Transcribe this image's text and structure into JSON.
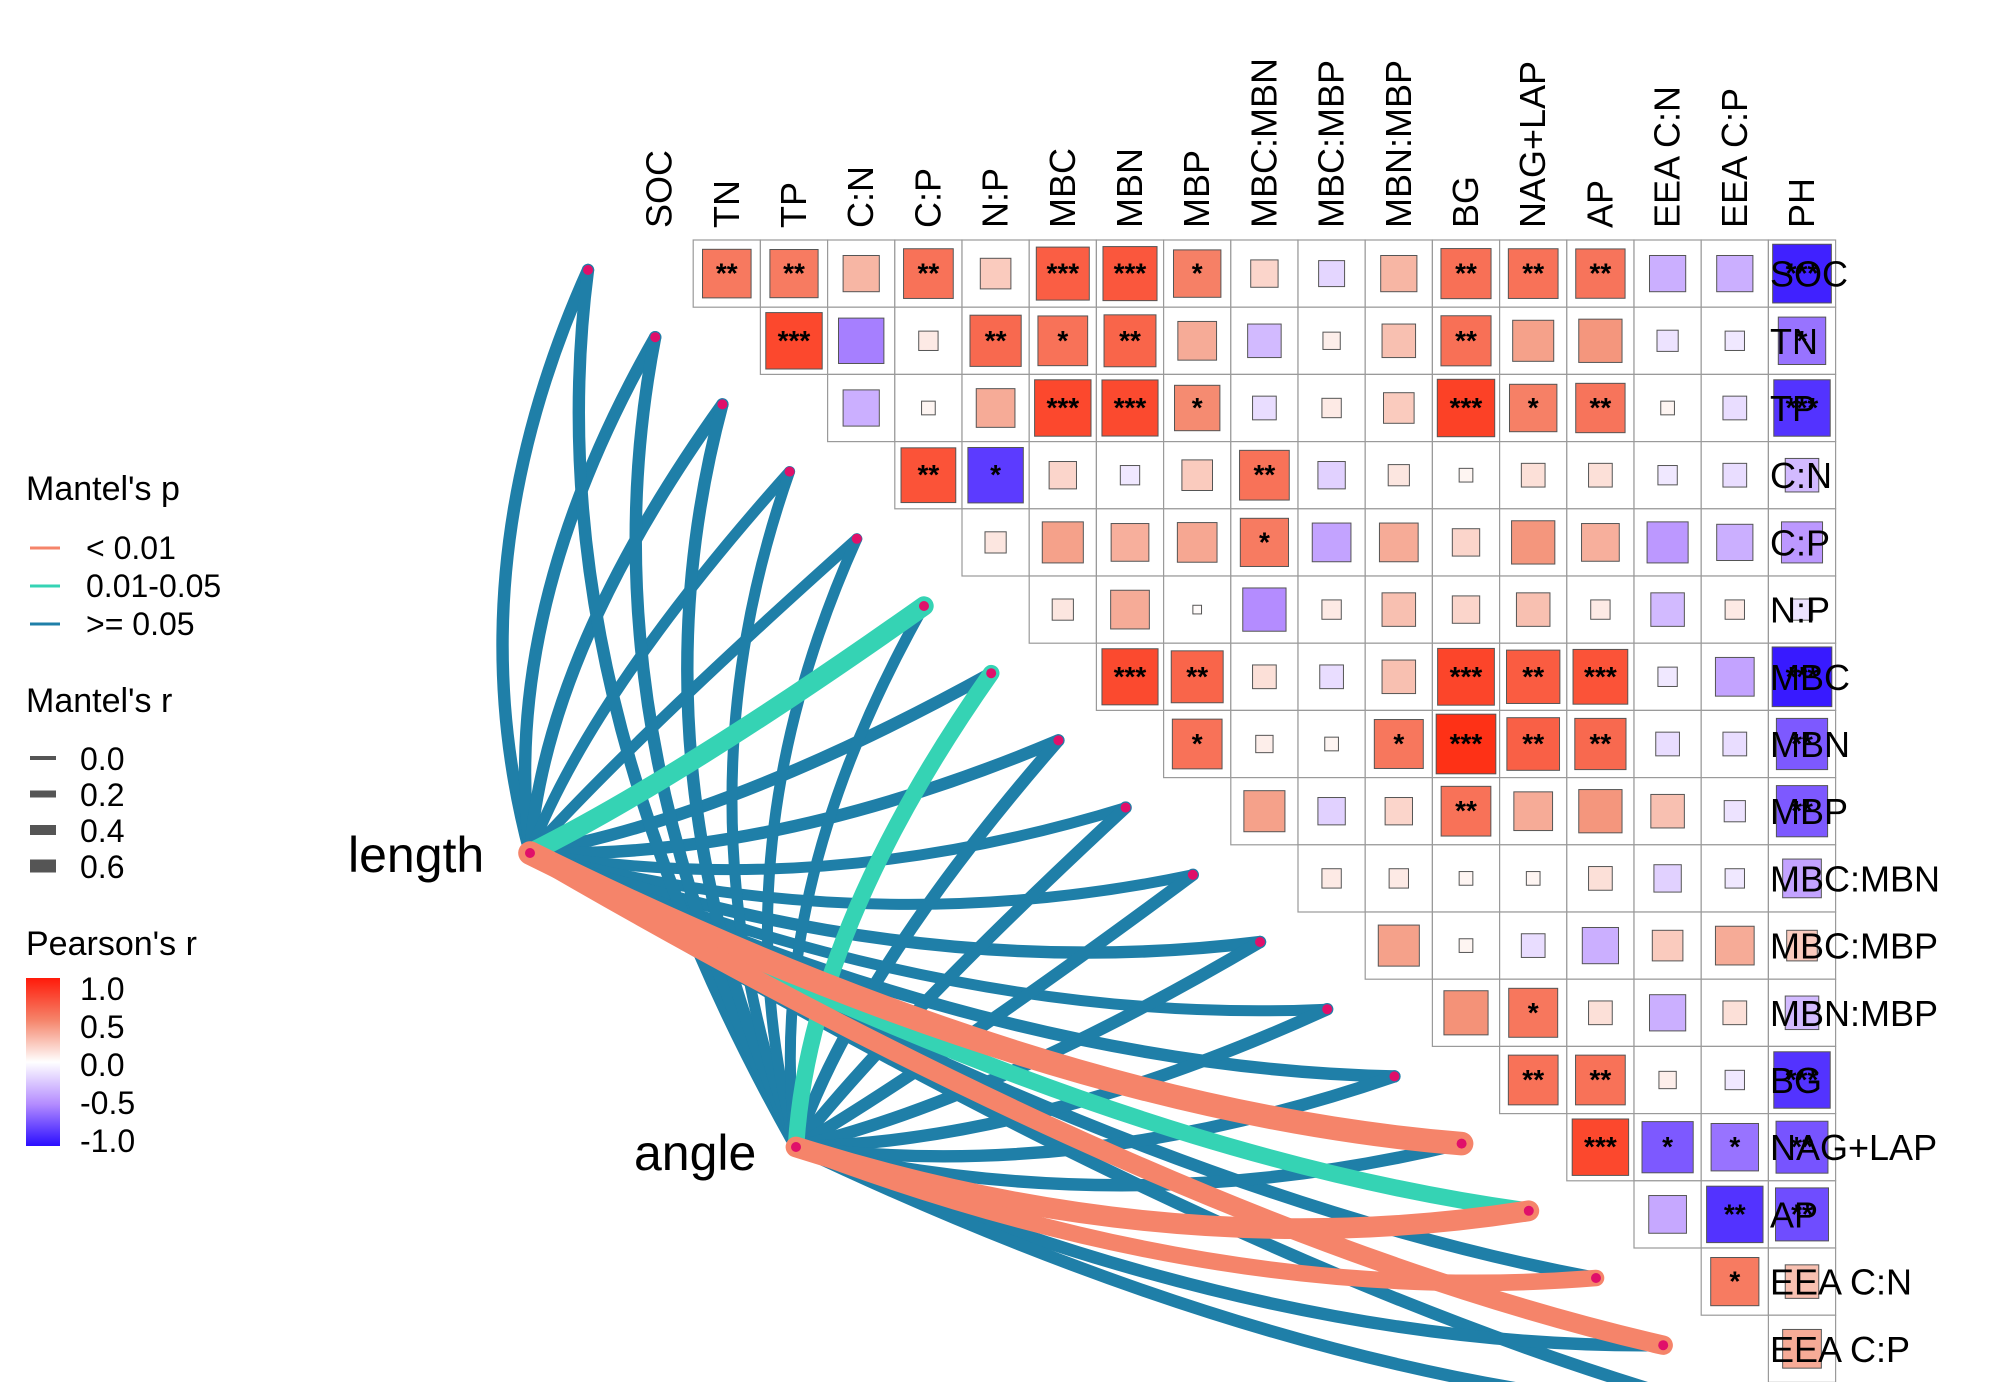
{
  "chart_data": {
    "type": "heatmap",
    "variables": [
      "SOC",
      "TN",
      "TP",
      "C:N",
      "C:P",
      "N:P",
      "MBC",
      "MBN",
      "MBP",
      "MBC:MBN",
      "MBC:MBP",
      "MBN:MBP",
      "BG",
      "NAG+LAP",
      "AP",
      "EEA C:N",
      "EEA C:P",
      "PH"
    ],
    "pearson_rows": [
      {
        "row": "SOC",
        "values": [
          0.63,
          0.62,
          0.35,
          0.66,
          0.25,
          0.75,
          0.78,
          0.6,
          0.2,
          -0.18,
          0.35,
          0.67,
          0.66,
          0.65,
          -0.35,
          -0.35,
          -0.92
        ],
        "sig": [
          "**",
          "**",
          "",
          "**",
          "",
          "***",
          "***",
          "*",
          "",
          "",
          "",
          "**",
          "**",
          "**",
          "",
          "",
          "***"
        ]
      },
      {
        "row": "TN",
        "values": [
          0.85,
          -0.55,
          0.1,
          0.7,
          0.66,
          0.72,
          0.4,
          -0.3,
          0.08,
          0.3,
          0.67,
          0.45,
          0.5,
          -0.12,
          -0.1,
          -0.6
        ],
        "sig": [
          "***",
          "",
          "",
          "**",
          "*",
          "**",
          "",
          "",
          "",
          "",
          "**",
          "",
          "",
          "",
          "",
          "*"
        ]
      },
      {
        "row": "TP",
        "values": [
          -0.35,
          0.05,
          0.4,
          0.85,
          0.84,
          0.55,
          -0.15,
          0.1,
          0.25,
          0.88,
          0.6,
          0.65,
          0.05,
          -0.15,
          -0.85
        ],
        "sig": [
          "",
          "",
          "",
          "***",
          "***",
          "*",
          "",
          "",
          "",
          "***",
          "*",
          "**",
          "",
          "",
          "***"
        ]
      },
      {
        "row": "C:N",
        "values": [
          0.8,
          -0.82,
          0.2,
          -0.1,
          0.25,
          0.66,
          -0.2,
          0.12,
          0.05,
          0.15,
          0.15,
          -0.1,
          -0.15,
          -0.3
        ],
        "sig": [
          "**",
          "*",
          "",
          "",
          "",
          "**",
          "",
          "",
          "",
          "",
          "",
          "",
          "",
          ""
        ]
      },
      {
        "row": "C:P",
        "values": [
          0.12,
          0.45,
          0.38,
          0.42,
          0.62,
          -0.4,
          0.4,
          0.2,
          0.5,
          0.38,
          -0.45,
          -0.35,
          -0.45
        ],
        "sig": [
          "",
          "",
          "",
          "",
          "*",
          "",
          "",
          "",
          "",
          "",
          "",
          "",
          ""
        ]
      },
      {
        "row": "N:P",
        "values": [
          0.12,
          0.4,
          0.02,
          -0.5,
          0.1,
          0.3,
          0.2,
          0.3,
          0.1,
          -0.3,
          0.1,
          -0.12
        ],
        "sig": [
          "",
          "",
          "",
          "",
          "",
          "",
          "",
          "",
          "",
          "",
          "",
          ""
        ]
      },
      {
        "row": "MBC",
        "values": [
          0.84,
          0.72,
          0.15,
          -0.15,
          0.3,
          0.86,
          0.76,
          0.8,
          -0.1,
          -0.4,
          -0.95
        ],
        "sig": [
          "***",
          "**",
          "",
          "",
          "",
          "***",
          "**",
          "***",
          "",
          "",
          "***"
        ]
      },
      {
        "row": "MBN",
        "values": [
          0.66,
          0.08,
          0.05,
          0.64,
          0.95,
          0.74,
          0.7,
          -0.15,
          -0.15,
          -0.7
        ],
        "sig": [
          "*",
          "",
          "",
          "*",
          "***",
          "**",
          "**",
          "",
          "",
          "**"
        ]
      },
      {
        "row": "MBP",
        "values": [
          0.45,
          -0.2,
          0.2,
          0.66,
          0.4,
          0.5,
          0.3,
          -0.12,
          -0.7
        ],
        "sig": [
          "",
          "",
          "",
          "**",
          "",
          "",
          "",
          "",
          "**"
        ]
      },
      {
        "row": "MBC:MBN",
        "values": [
          0.1,
          0.1,
          0.05,
          0.05,
          0.15,
          -0.2,
          -0.1,
          -0.4
        ],
        "sig": [
          "",
          "",
          "",
          "",
          "",
          "",
          "",
          ""
        ]
      },
      {
        "row": "MBC:MBP",
        "values": [
          0.45,
          0.05,
          -0.15,
          -0.35,
          0.25,
          0.4,
          0.25
        ],
        "sig": [
          "",
          "",
          "",
          "",
          "",
          "",
          ""
        ]
      },
      {
        "row": "MBN:MBP",
        "values": [
          0.52,
          0.64,
          0.15,
          -0.35,
          0.15,
          -0.3
        ],
        "sig": [
          "",
          "*",
          "",
          "",
          "",
          ""
        ]
      },
      {
        "row": "BG",
        "values": [
          0.66,
          0.66,
          0.08,
          -0.1,
          -0.85
        ],
        "sig": [
          "**",
          "**",
          "",
          "",
          "***"
        ]
      },
      {
        "row": "NAG+LAP",
        "values": [
          0.85,
          -0.7,
          -0.6,
          -0.72
        ],
        "sig": [
          "***",
          "*",
          "*",
          "**"
        ]
      },
      {
        "row": "AP",
        "values": [
          -0.38,
          -0.85,
          -0.75
        ],
        "sig": [
          "",
          "**",
          "**"
        ]
      },
      {
        "row": "EEA C:N",
        "values": [
          0.62,
          0.3
        ],
        "sig": [
          "*",
          ""
        ]
      },
      {
        "row": "EEA C:P",
        "values": [
          0.4
        ],
        "sig": [
          ""
        ]
      }
    ],
    "mantel_links": [
      {
        "from": "length",
        "to": "SOC",
        "p": ">= 0.05",
        "r": 0.3
      },
      {
        "from": "length",
        "to": "TN",
        "p": ">= 0.05",
        "r": 0.3
      },
      {
        "from": "length",
        "to": "TP",
        "p": ">= 0.05",
        "r": 0.3
      },
      {
        "from": "length",
        "to": "C:N",
        "p": ">= 0.05",
        "r": 0.25
      },
      {
        "from": "length",
        "to": "C:P",
        "p": ">= 0.05",
        "r": 0.25
      },
      {
        "from": "length",
        "to": "N:P",
        "p": "0.01-0.05",
        "r": 0.55
      },
      {
        "from": "length",
        "to": "MBC",
        "p": ">= 0.05",
        "r": 0.3
      },
      {
        "from": "length",
        "to": "MBN",
        "p": ">= 0.05",
        "r": 0.3
      },
      {
        "from": "length",
        "to": "MBP",
        "p": ">= 0.05",
        "r": 0.25
      },
      {
        "from": "length",
        "to": "MBC:MBN",
        "p": ">= 0.05",
        "r": 0.25
      },
      {
        "from": "length",
        "to": "MBC:MBP",
        "p": ">= 0.05",
        "r": 0.3
      },
      {
        "from": "length",
        "to": "MBN:MBP",
        "p": ">= 0.05",
        "r": 0.25
      },
      {
        "from": "length",
        "to": "BG",
        "p": ">= 0.05",
        "r": 0.3
      },
      {
        "from": "length",
        "to": "NAG+LAP",
        "p": "< 0.01",
        "r": 0.7
      },
      {
        "from": "length",
        "to": "AP",
        "p": "0.01-0.05",
        "r": 0.45
      },
      {
        "from": "length",
        "to": "EEA C:N",
        "p": ">= 0.05",
        "r": 0.3
      },
      {
        "from": "length",
        "to": "EEA C:P",
        "p": "< 0.01",
        "r": 0.55
      },
      {
        "from": "length",
        "to": "PH",
        "p": ">= 0.05",
        "r": 0.3
      },
      {
        "from": "angle",
        "to": "SOC",
        "p": ">= 0.05",
        "r": 0.3
      },
      {
        "from": "angle",
        "to": "TN",
        "p": ">= 0.05",
        "r": 0.3
      },
      {
        "from": "angle",
        "to": "TP",
        "p": ">= 0.05",
        "r": 0.3
      },
      {
        "from": "angle",
        "to": "C:N",
        "p": ">= 0.05",
        "r": 0.25
      },
      {
        "from": "angle",
        "to": "C:P",
        "p": ">= 0.05",
        "r": 0.25
      },
      {
        "from": "angle",
        "to": "N:P",
        "p": ">= 0.05",
        "r": 0.25
      },
      {
        "from": "angle",
        "to": "MBC",
        "p": "0.01-0.05",
        "r": 0.45
      },
      {
        "from": "angle",
        "to": "MBN",
        "p": ">= 0.05",
        "r": 0.3
      },
      {
        "from": "angle",
        "to": "MBP",
        "p": ">= 0.05",
        "r": 0.3
      },
      {
        "from": "angle",
        "to": "MBC:MBN",
        "p": ">= 0.05",
        "r": 0.3
      },
      {
        "from": "angle",
        "to": "MBC:MBP",
        "p": ">= 0.05",
        "r": 0.3
      },
      {
        "from": "angle",
        "to": "MBN:MBP",
        "p": ">= 0.05",
        "r": 0.3
      },
      {
        "from": "angle",
        "to": "BG",
        "p": ">= 0.05",
        "r": 0.3
      },
      {
        "from": "angle",
        "to": "NAG+LAP",
        "p": ">= 0.05",
        "r": 0.3
      },
      {
        "from": "angle",
        "to": "AP",
        "p": "< 0.01",
        "r": 0.6
      },
      {
        "from": "angle",
        "to": "EEA C:N",
        "p": "< 0.01",
        "r": 0.45
      },
      {
        "from": "angle",
        "to": "EEA C:P",
        "p": ">= 0.05",
        "r": 0.3
      },
      {
        "from": "angle",
        "to": "PH",
        "p": ">= 0.05",
        "r": 0.3
      }
    ],
    "legend": {
      "mantel_p_title": "Mantel's p",
      "mantel_p_items": [
        {
          "label": "< 0.01",
          "color": "#f5846a"
        },
        {
          "label": "0.01-0.05",
          "color": "#35d3b4"
        },
        {
          "label": ">= 0.05",
          "color": "#1f7fa8"
        }
      ],
      "mantel_r_title": "Mantel's r",
      "mantel_r_items": [
        "0.0",
        "0.2",
        "0.4",
        "0.6"
      ],
      "pearson_title": "Pearson's r",
      "pearson_ticks": [
        "1.0",
        "0.5",
        "0.0",
        "-0.5",
        "-1.0"
      ],
      "pearson_range": [
        -1.0,
        1.0
      ]
    },
    "source_labels": [
      "length",
      "angle"
    ]
  },
  "colors": {
    "p_lt_001": "#f5846a",
    "p_001_005": "#35d3b4",
    "p_ge_005": "#1f7fa8",
    "positive": "#ff3b1f",
    "negative": "#3a12ff",
    "node": "#e0106a"
  }
}
